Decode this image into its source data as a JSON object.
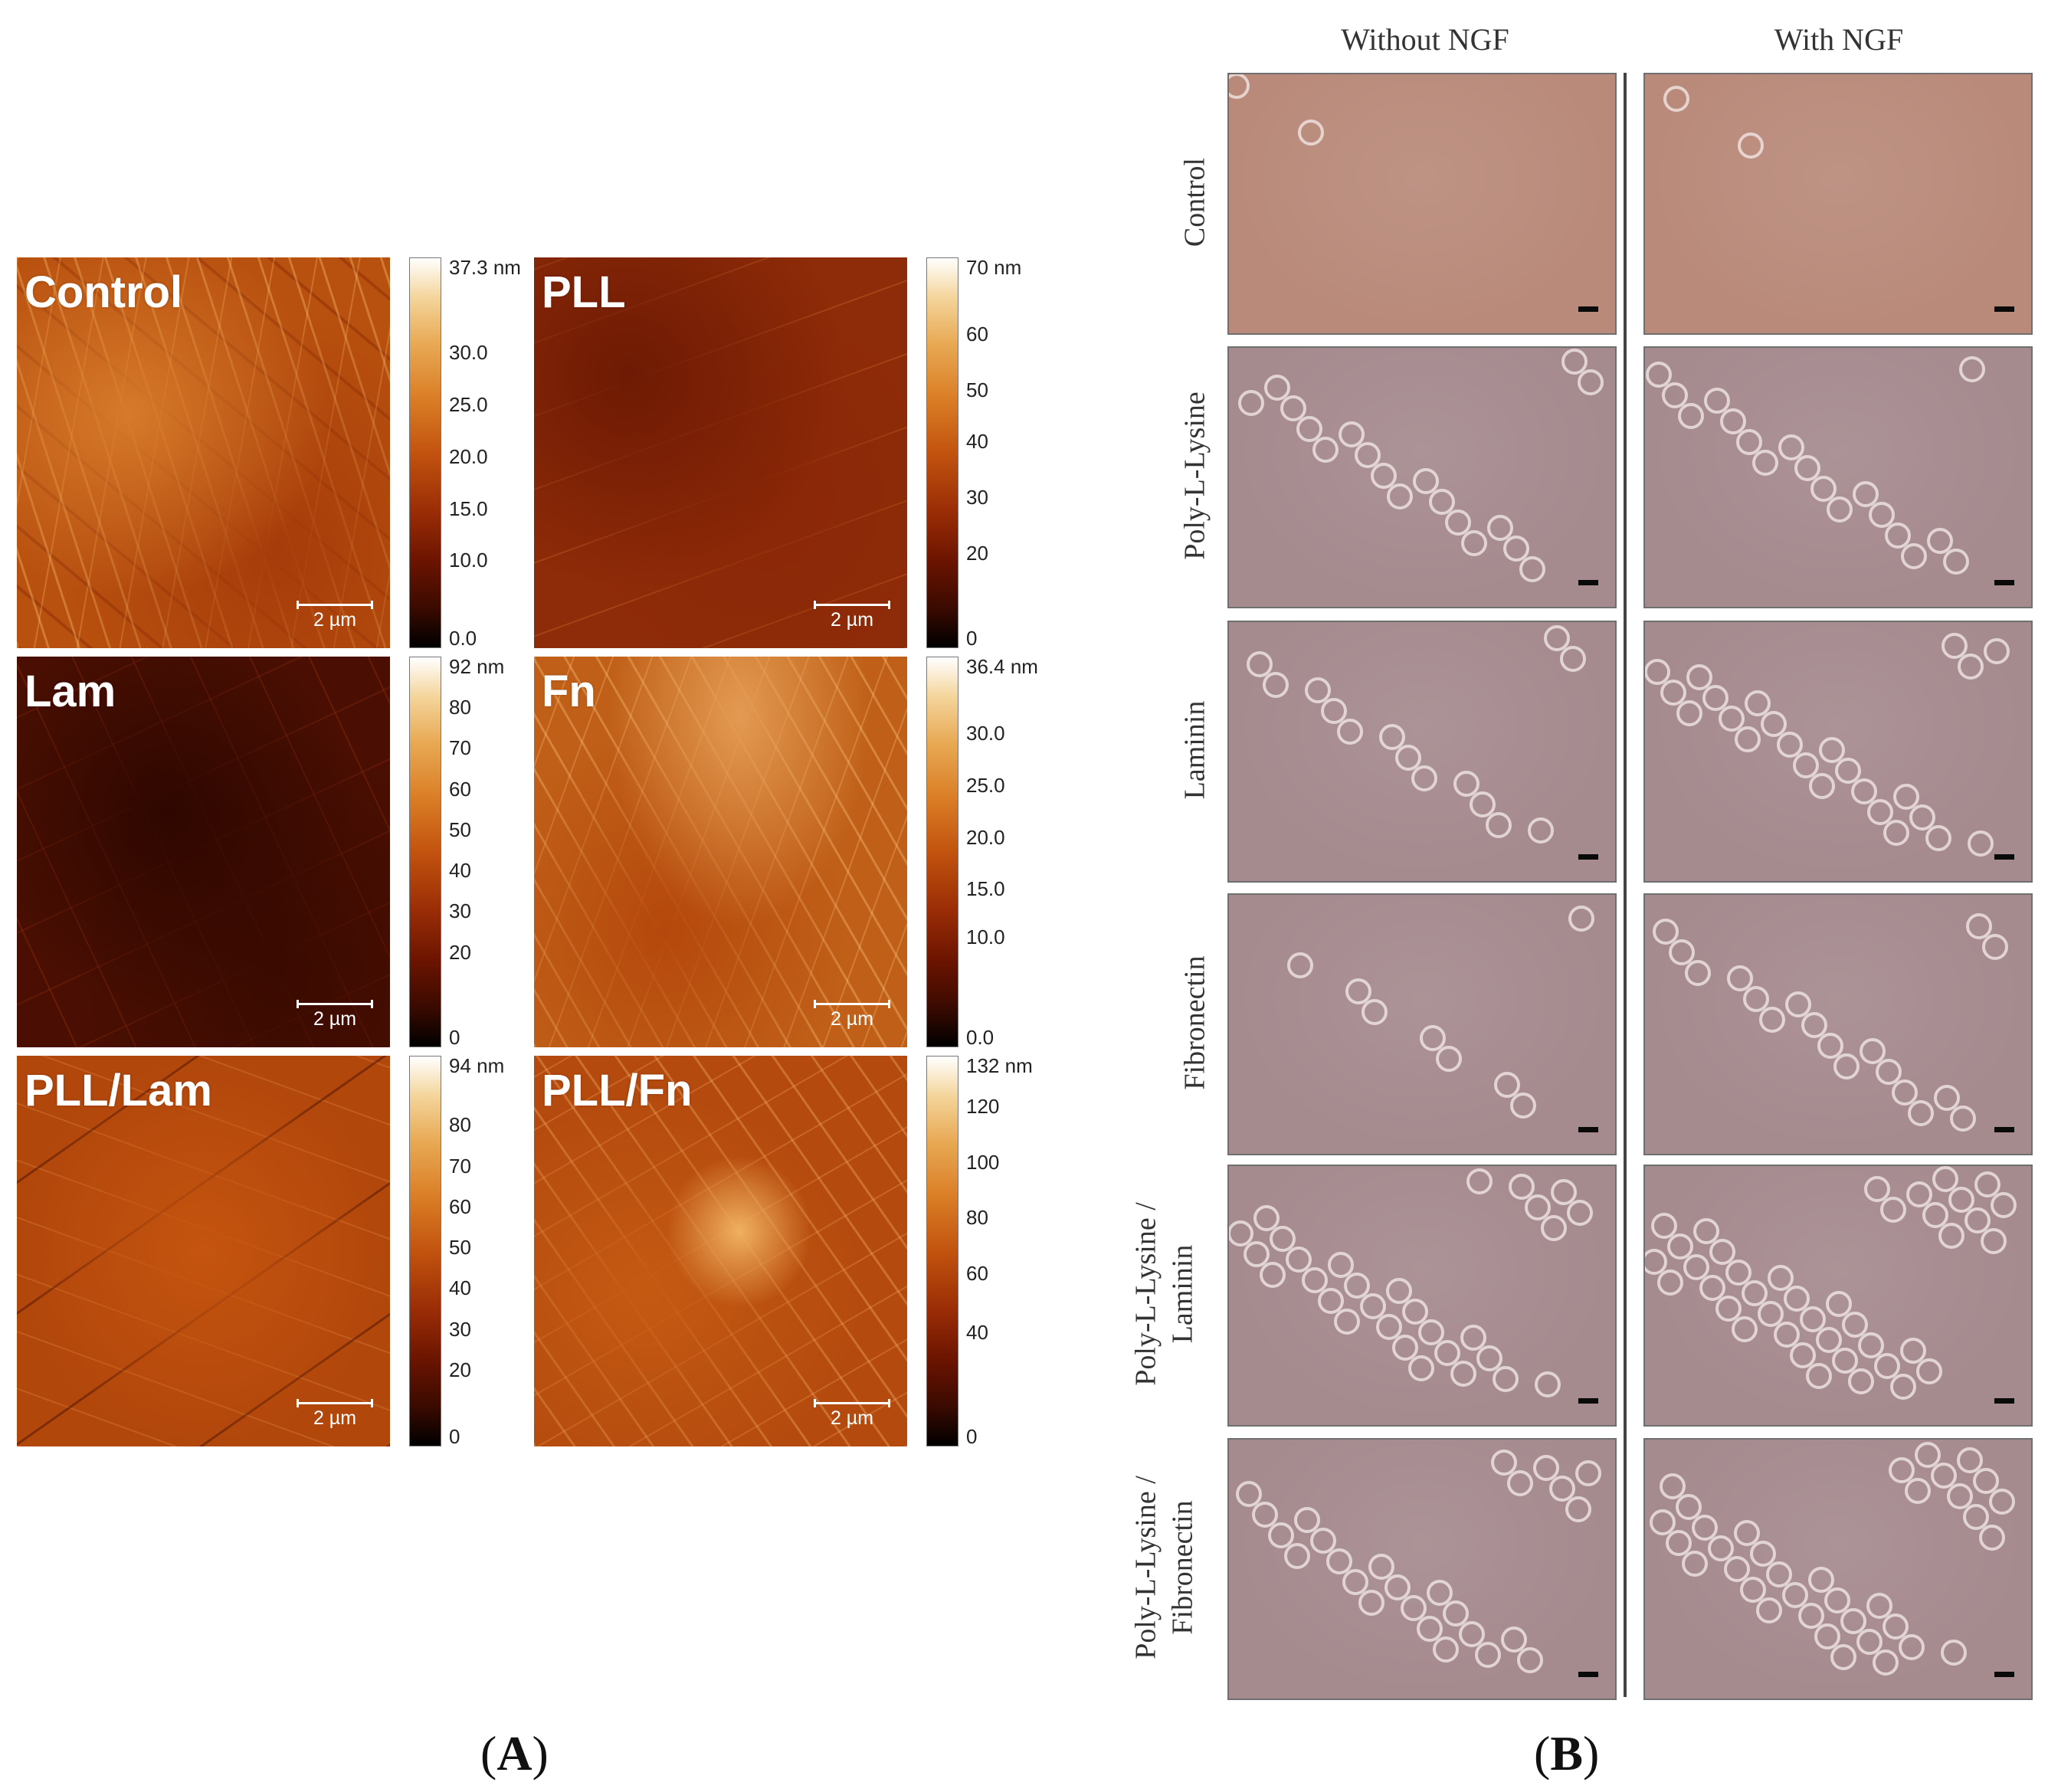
{
  "panel_a": {
    "label_open": "(",
    "label_letter": "A",
    "label_close": ")",
    "images": [
      {
        "name": "Control",
        "scale": "2 µm",
        "ticks": [
          "37.3 nm",
          "30.0",
          "25.0",
          "20.0",
          "15.0",
          "10.0",
          "0.0"
        ]
      },
      {
        "name": "PLL",
        "scale": "2 µm",
        "ticks": [
          "70 nm",
          "60",
          "50",
          "40",
          "30",
          "20",
          "0"
        ]
      },
      {
        "name": "Lam",
        "scale": "2 µm",
        "ticks": [
          "92 nm",
          "80",
          "70",
          "60",
          "50",
          "40",
          "30",
          "20",
          "0"
        ]
      },
      {
        "name": "Fn",
        "scale": "2 µm",
        "ticks": [
          "36.4 nm",
          "30.0",
          "25.0",
          "20.0",
          "15.0",
          "10.0",
          "0.0"
        ]
      },
      {
        "name": "PLL/Lam",
        "scale": "2 µm",
        "ticks": [
          "94 nm",
          "80",
          "70",
          "60",
          "50",
          "40",
          "30",
          "20",
          "0"
        ]
      },
      {
        "name": "PLL/Fn",
        "scale": "2 µm",
        "ticks": [
          "132 nm",
          "120",
          "100",
          "80",
          "60",
          "40",
          "0"
        ]
      }
    ]
  },
  "panel_b": {
    "label_open": "(",
    "label_letter": "B",
    "label_close": ")",
    "columns": [
      "Without NGF",
      "With NGF"
    ],
    "rows": [
      {
        "line1": "Control",
        "line2": ""
      },
      {
        "line1": "Poly-L-Lysine",
        "line2": ""
      },
      {
        "line1": "Laminin",
        "line2": ""
      },
      {
        "line1": "Fibronectin",
        "line2": ""
      },
      {
        "line1": "Poly-L-Lysine /",
        "line2": "Laminin"
      },
      {
        "line1": "Poly-L-Lysine /",
        "line2": "Fibronectin"
      }
    ]
  },
  "colors": {
    "afm_dark": "#3a0a00",
    "afm_mid": "#b5420a",
    "afm_light": "#f0b060",
    "micro_control": "#b98a7a",
    "micro_bg": "#a58a8e"
  }
}
